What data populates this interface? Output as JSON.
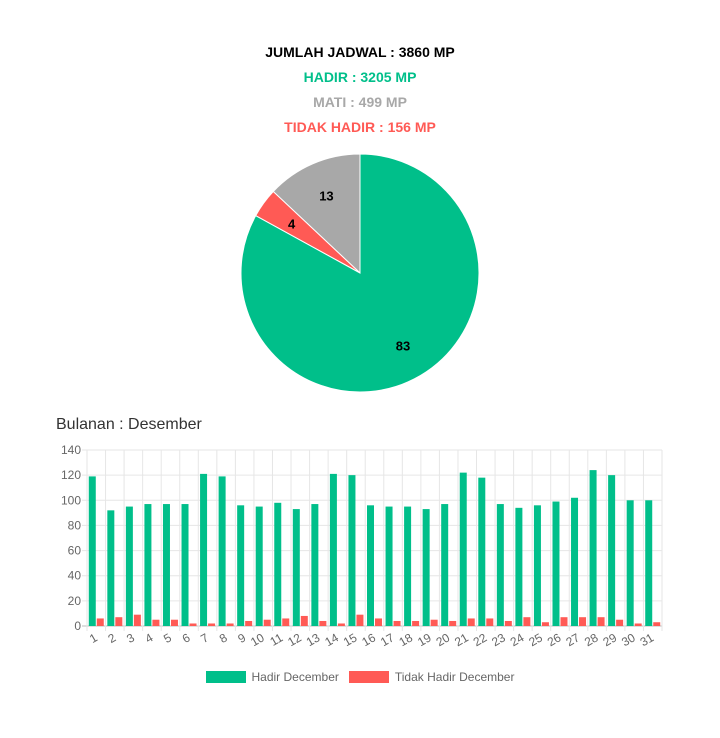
{
  "summary": {
    "total": "JUMLAH JADWAL : 3860 MP",
    "hadir": "HADIR : 3205 MP",
    "mati": "MATI : 499 MP",
    "tidak_hadir": "TIDAK HADIR : 156 MP"
  },
  "colors": {
    "hadir": "#00bf8a",
    "tidak_hadir": "#ff5a55",
    "mati": "#a8a8a8"
  },
  "chart_data": [
    {
      "type": "pie",
      "slices": [
        {
          "label": "13",
          "value": 13,
          "color": "#a8a8a8"
        },
        {
          "label": "4",
          "value": 4,
          "color": "#ff5a55"
        },
        {
          "label": "83",
          "value": 83,
          "color": "#00bf8a"
        }
      ],
      "start": "top",
      "direction": "counterclockwise"
    },
    {
      "type": "bar",
      "title": "Bulanan : Desember",
      "categories": [
        "1",
        "2",
        "3",
        "4",
        "5",
        "6",
        "7",
        "8",
        "9",
        "10",
        "11",
        "12",
        "13",
        "14",
        "15",
        "16",
        "17",
        "18",
        "19",
        "20",
        "21",
        "22",
        "23",
        "24",
        "25",
        "26",
        "27",
        "28",
        "29",
        "30",
        "31"
      ],
      "series": [
        {
          "name": "Hadir December",
          "color": "#00bf8a",
          "values": [
            119,
            92,
            95,
            97,
            97,
            97,
            121,
            119,
            96,
            95,
            98,
            93,
            97,
            121,
            120,
            96,
            95,
            95,
            93,
            97,
            122,
            118,
            97,
            94,
            96,
            99,
            102,
            124,
            120,
            100,
            100
          ]
        },
        {
          "name": "Tidak Hadir December",
          "color": "#ff5a55",
          "values": [
            6,
            7,
            9,
            5,
            5,
            2,
            2,
            2,
            4,
            5,
            6,
            8,
            4,
            2,
            9,
            6,
            4,
            4,
            5,
            4,
            6,
            6,
            4,
            7,
            3,
            7,
            7,
            7,
            5,
            2,
            3
          ]
        }
      ],
      "ylim": [
        0,
        140
      ],
      "yticks": [
        0,
        20,
        40,
        60,
        80,
        100,
        120,
        140
      ],
      "grid": true,
      "legend": "bottom"
    }
  ]
}
